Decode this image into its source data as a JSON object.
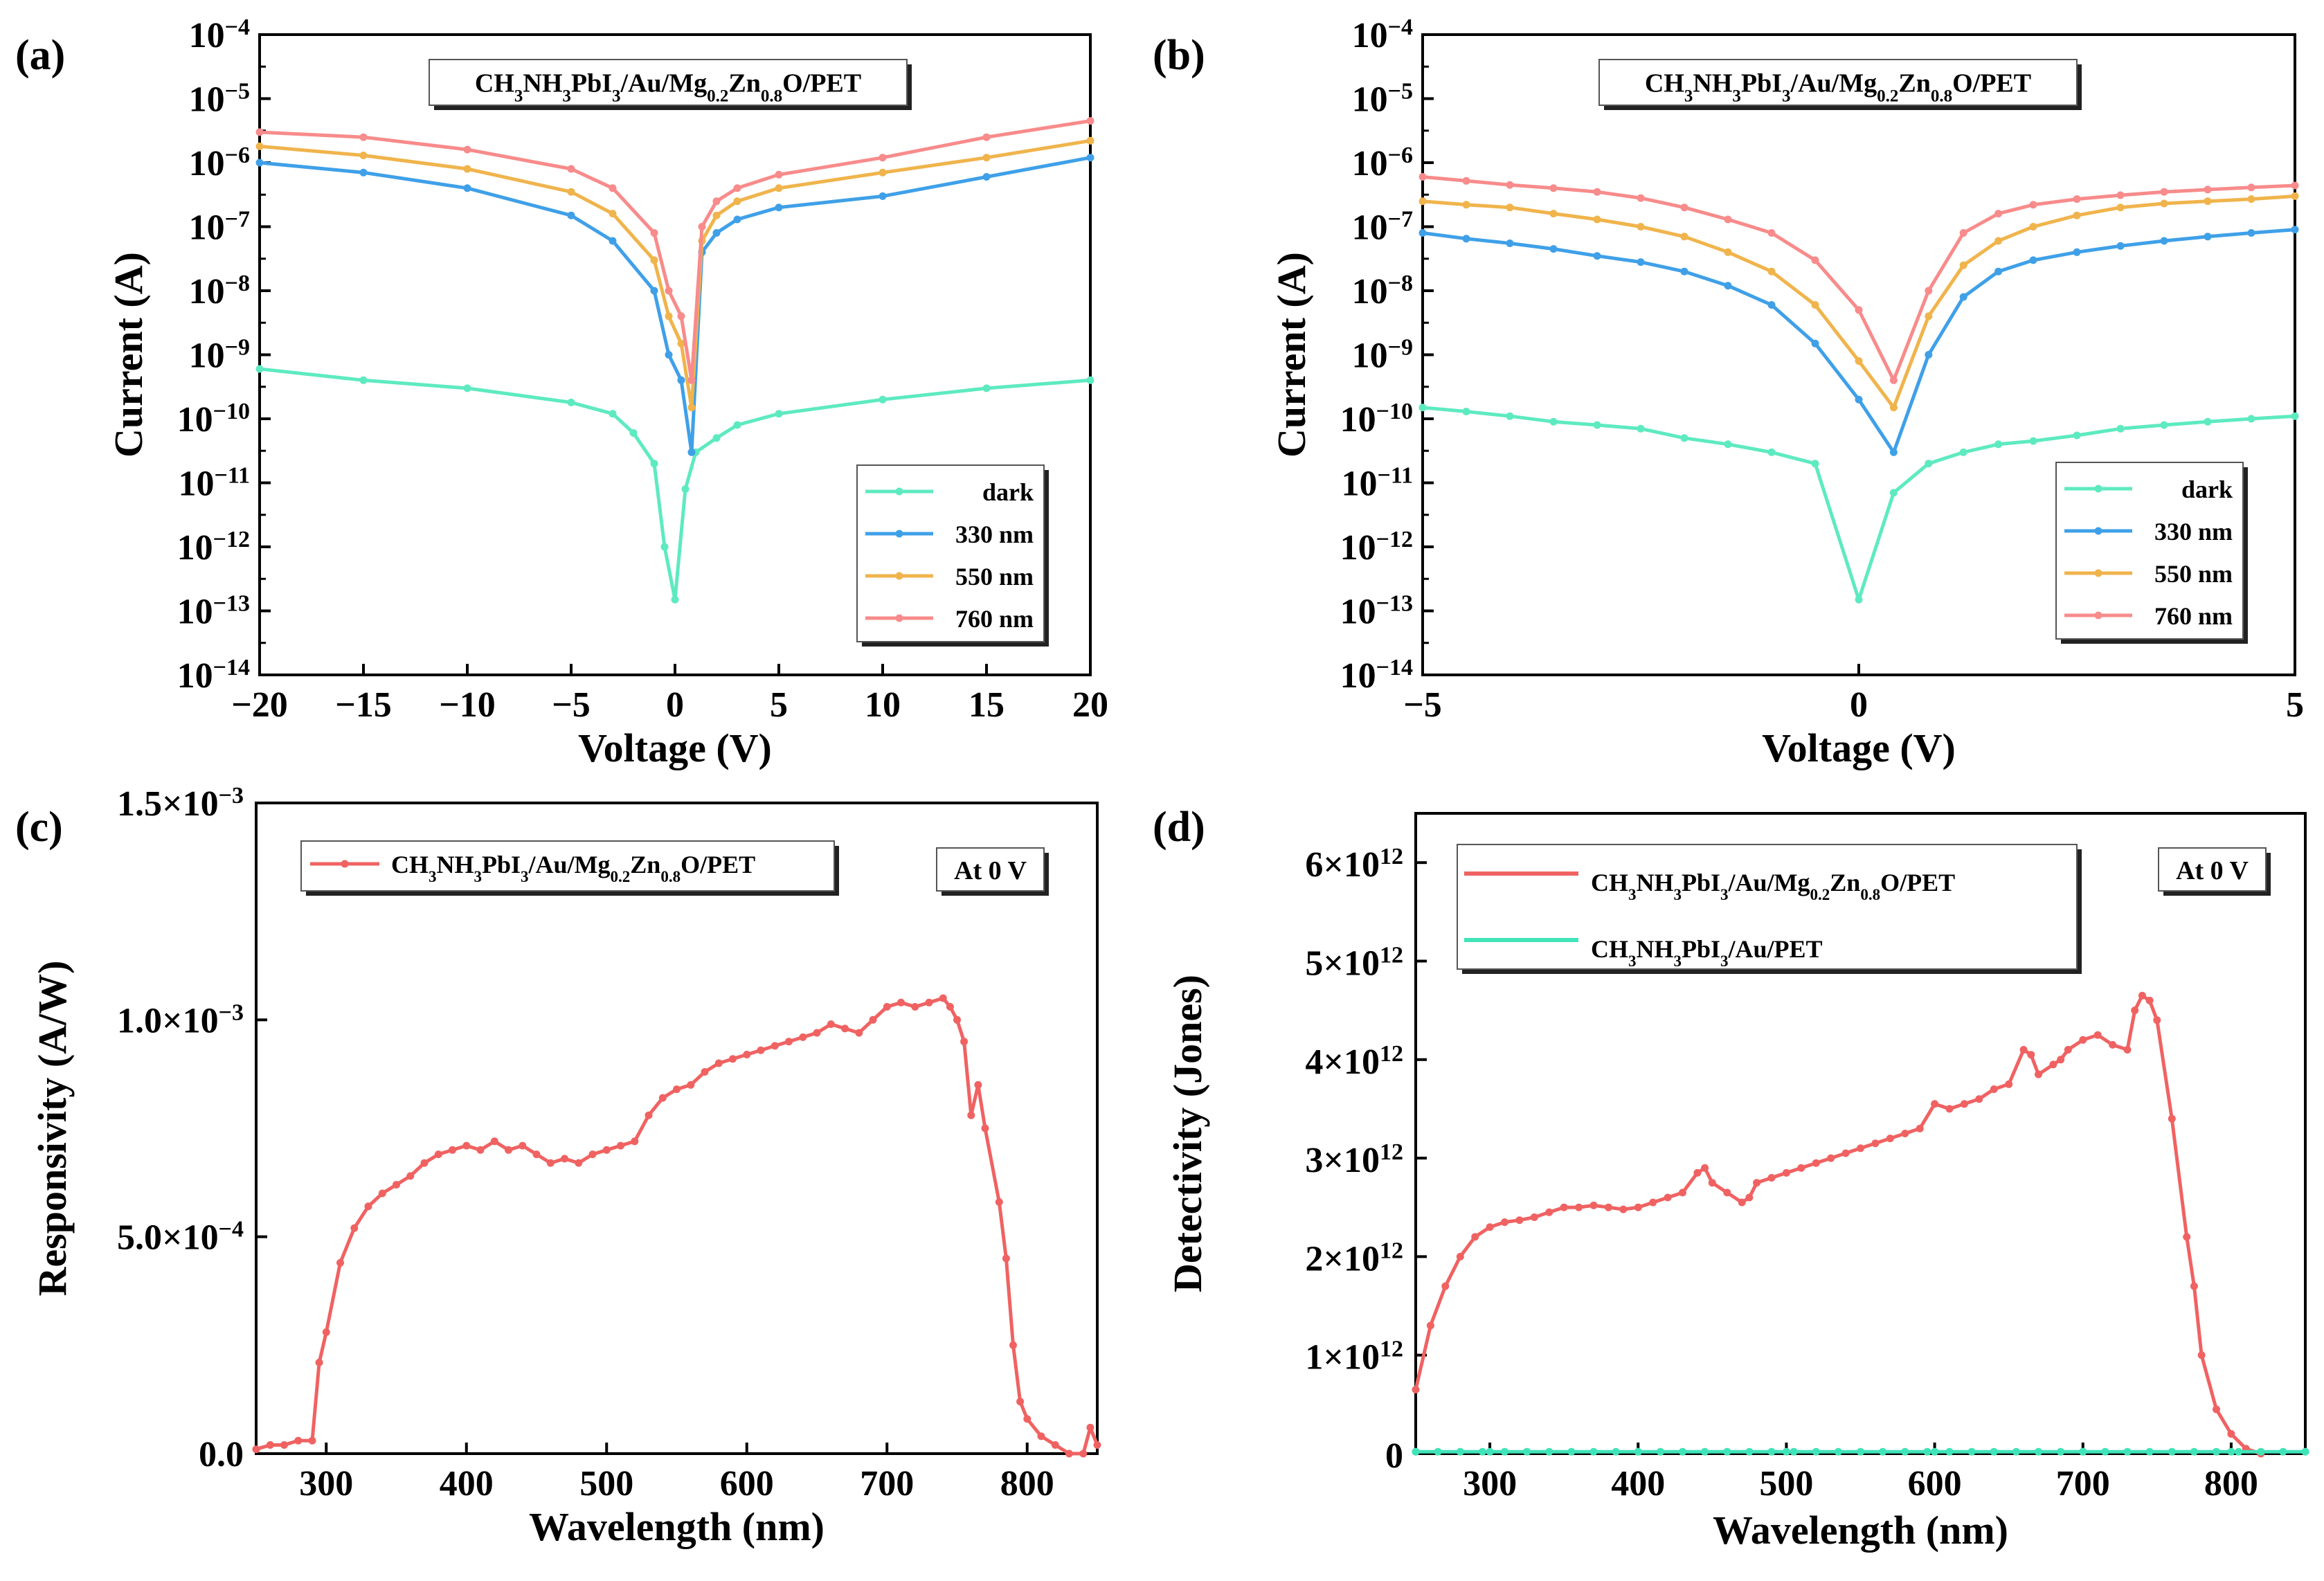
{
  "figure": {
    "panels": [
      "(a)",
      "(b)",
      "(c)",
      "(d)"
    ],
    "device_label": "CH3NH3PbI3/Au/Mg0.2Zn0.8O/PET",
    "bias_note": "At 0 V"
  },
  "chart_data": [
    {
      "panel": "(a)",
      "type": "line",
      "yscale": "log",
      "title": "CH3NH3PbI3/Au/Mg0.2Zn0.8O/PET",
      "xlabel": "Voltage (V)",
      "ylabel": "Current (A)",
      "xlim": [
        -20,
        20
      ],
      "ylim_exp": [
        -14,
        -4
      ],
      "x_ticks": [
        -20,
        -15,
        -10,
        -5,
        0,
        5,
        10,
        15,
        20
      ],
      "y_tick_exponents": [
        -14,
        -13,
        -12,
        -11,
        -10,
        -9,
        -8,
        -7,
        -6,
        -5,
        -4
      ],
      "legend_position": "bottom-right",
      "series": [
        {
          "name": "dark",
          "color": "#5eeac0",
          "x": [
            -20,
            -15,
            -10,
            -5,
            -3,
            -2,
            -1,
            -0.5,
            0,
            0.5,
            1,
            2,
            3,
            5,
            10,
            15,
            20
          ],
          "y": [
            6e-10,
            4e-10,
            3e-10,
            1.8e-10,
            1.2e-10,
            6e-11,
            2e-11,
            1e-12,
            1.5e-13,
            8e-12,
            3e-11,
            5e-11,
            8e-11,
            1.2e-10,
            2e-10,
            3e-10,
            4e-10
          ]
        },
        {
          "name": "330 nm",
          "color": "#3fa0e8",
          "x": [
            -20,
            -15,
            -10,
            -5,
            -3,
            -1,
            -0.3,
            0.3,
            0.8,
            1.3,
            2,
            3,
            5,
            10,
            15,
            20
          ],
          "y": [
            1e-06,
            7e-07,
            4e-07,
            1.5e-07,
            6e-08,
            1e-08,
            1e-09,
            4e-10,
            3e-11,
            4e-08,
            8e-08,
            1.3e-07,
            2e-07,
            3e-07,
            6e-07,
            1.2e-06
          ]
        },
        {
          "name": "550 nm",
          "color": "#f0b44c",
          "x": [
            -20,
            -15,
            -10,
            -5,
            -3,
            -1,
            -0.3,
            0.3,
            0.8,
            1.3,
            2,
            3,
            5,
            10,
            15,
            20
          ],
          "y": [
            1.8e-06,
            1.3e-06,
            8e-07,
            3.5e-07,
            1.6e-07,
            3e-08,
            4e-09,
            1.5e-09,
            1.5e-10,
            6e-08,
            1.5e-07,
            2.5e-07,
            4e-07,
            7e-07,
            1.2e-06,
            2.2e-06
          ]
        },
        {
          "name": "760 nm",
          "color": "#f88b8b",
          "x": [
            -20,
            -15,
            -10,
            -5,
            -3,
            -1,
            -0.3,
            0.3,
            0.8,
            1.3,
            2,
            3,
            5,
            10,
            15,
            20
          ],
          "y": [
            3e-06,
            2.5e-06,
            1.6e-06,
            8e-07,
            4e-07,
            8e-08,
            1e-08,
            4e-09,
            4e-10,
            1e-07,
            2.5e-07,
            4e-07,
            6.5e-07,
            1.2e-06,
            2.5e-06,
            4.5e-06
          ]
        }
      ]
    },
    {
      "panel": "(b)",
      "type": "line",
      "yscale": "log",
      "title": "CH3NH3PbI3/Au/Mg0.2Zn0.8O/PET",
      "xlabel": "Voltage (V)",
      "ylabel": "Current (A)",
      "xlim": [
        -5,
        5
      ],
      "ylim_exp": [
        -14,
        -4
      ],
      "x_ticks": [
        -5,
        0,
        5
      ],
      "y_tick_exponents": [
        -14,
        -13,
        -12,
        -11,
        -10,
        -9,
        -8,
        -7,
        -6,
        -5,
        -4
      ],
      "legend_position": "bottom-right",
      "series": [
        {
          "name": "dark",
          "color": "#5eeac0",
          "x": [
            -5,
            -4.5,
            -4,
            -3.5,
            -3,
            -2.5,
            -2,
            -1.5,
            -1,
            -0.5,
            0,
            0.4,
            0.8,
            1.2,
            1.6,
            2,
            2.5,
            3,
            3.5,
            4,
            4.5,
            5
          ],
          "y": [
            1.5e-10,
            1.3e-10,
            1.1e-10,
            9e-11,
            8e-11,
            7e-11,
            5e-11,
            4e-11,
            3e-11,
            2e-11,
            1.5e-13,
            7e-12,
            2e-11,
            3e-11,
            4e-11,
            4.5e-11,
            5.5e-11,
            7e-11,
            8e-11,
            9e-11,
            1e-10,
            1.1e-10
          ]
        },
        {
          "name": "330 nm",
          "color": "#3fa0e8",
          "x": [
            -5,
            -4.5,
            -4,
            -3.5,
            -3,
            -2.5,
            -2,
            -1.5,
            -1,
            -0.5,
            0,
            0.4,
            0.8,
            1.2,
            1.6,
            2,
            2.5,
            3,
            3.5,
            4,
            4.5,
            5
          ],
          "y": [
            8e-08,
            6.5e-08,
            5.5e-08,
            4.5e-08,
            3.5e-08,
            2.8e-08,
            2e-08,
            1.2e-08,
            6e-09,
            1.5e-09,
            2e-10,
            3e-11,
            1e-09,
            8e-09,
            2e-08,
            3e-08,
            4e-08,
            5e-08,
            6e-08,
            7e-08,
            8e-08,
            9e-08
          ]
        },
        {
          "name": "550 nm",
          "color": "#f0b44c",
          "x": [
            -5,
            -4.5,
            -4,
            -3.5,
            -3,
            -2.5,
            -2,
            -1.5,
            -1,
            -0.5,
            0,
            0.4,
            0.8,
            1.2,
            1.6,
            2,
            2.5,
            3,
            3.5,
            4,
            4.5,
            5
          ],
          "y": [
            2.5e-07,
            2.2e-07,
            2e-07,
            1.6e-07,
            1.3e-07,
            1e-07,
            7e-08,
            4e-08,
            2e-08,
            6e-09,
            8e-10,
            1.5e-10,
            4e-09,
            2.5e-08,
            6e-08,
            1e-07,
            1.5e-07,
            2e-07,
            2.3e-07,
            2.5e-07,
            2.7e-07,
            3e-07
          ]
        },
        {
          "name": "760 nm",
          "color": "#f88b8b",
          "x": [
            -5,
            -4.5,
            -4,
            -3.5,
            -3,
            -2.5,
            -2,
            -1.5,
            -1,
            -0.5,
            0,
            0.4,
            0.8,
            1.2,
            1.6,
            2,
            2.5,
            3,
            3.5,
            4,
            4.5,
            5
          ],
          "y": [
            6e-07,
            5.2e-07,
            4.5e-07,
            4e-07,
            3.5e-07,
            2.8e-07,
            2e-07,
            1.3e-07,
            8e-08,
            3e-08,
            5e-09,
            4e-10,
            1e-08,
            8e-08,
            1.6e-07,
            2.2e-07,
            2.7e-07,
            3.1e-07,
            3.5e-07,
            3.8e-07,
            4.1e-07,
            4.4e-07
          ]
        }
      ]
    },
    {
      "panel": "(c)",
      "type": "line",
      "title": "",
      "xlabel": "Wavelength (nm)",
      "ylabel": "Responsivity (A/W)",
      "xlim": [
        250,
        850
      ],
      "ylim": [
        0,
        0.0015
      ],
      "x_ticks": [
        300,
        400,
        500,
        600,
        700,
        800
      ],
      "y_tick_labels": [
        "0.0",
        "5.0×10",
        "1.0×10",
        "1.5×10"
      ],
      "y_tick_exps": [
        "",
        "-4",
        "-3",
        "-3"
      ],
      "legend_position": "top-left",
      "series": [
        {
          "name": "CH3NH3PbI3/Au/Mg0.2Zn0.8O/PET",
          "color": "#f06262",
          "x": [
            250,
            260,
            270,
            280,
            290,
            295,
            300,
            310,
            320,
            330,
            340,
            350,
            360,
            370,
            380,
            390,
            400,
            410,
            420,
            430,
            440,
            450,
            460,
            470,
            480,
            490,
            500,
            510,
            520,
            530,
            540,
            550,
            560,
            570,
            580,
            590,
            600,
            610,
            620,
            630,
            640,
            650,
            660,
            670,
            680,
            690,
            700,
            710,
            720,
            730,
            740,
            745,
            750,
            755,
            760,
            765,
            770,
            780,
            785,
            790,
            795,
            800,
            810,
            820,
            830,
            840,
            845,
            850
          ],
          "y": [
            1e-05,
            2e-05,
            2e-05,
            3e-05,
            3e-05,
            0.00021,
            0.00028,
            0.00044,
            0.00052,
            0.00057,
            0.0006,
            0.00062,
            0.00064,
            0.00067,
            0.00069,
            0.0007,
            0.00071,
            0.0007,
            0.00072,
            0.0007,
            0.00071,
            0.00069,
            0.00067,
            0.00068,
            0.00067,
            0.00069,
            0.0007,
            0.00071,
            0.00072,
            0.00078,
            0.00082,
            0.00084,
            0.00085,
            0.00088,
            0.0009,
            0.00091,
            0.00092,
            0.00093,
            0.00094,
            0.00095,
            0.00096,
            0.00097,
            0.00099,
            0.00098,
            0.00097,
            0.001,
            0.00103,
            0.00104,
            0.00103,
            0.00104,
            0.00105,
            0.00103,
            0.001,
            0.00095,
            0.00078,
            0.00085,
            0.00075,
            0.00058,
            0.00045,
            0.00025,
            0.00012,
            8e-05,
            4e-05,
            2e-05,
            0.0,
            0.0,
            6e-05,
            2e-05
          ]
        }
      ]
    },
    {
      "panel": "(d)",
      "type": "line",
      "title": "",
      "xlabel": "Wavelength (nm)",
      "ylabel": "Detectivity (Jones)",
      "xlim": [
        250,
        850
      ],
      "ylim": [
        0,
        6500000000000.0
      ],
      "x_ticks": [
        300,
        400,
        500,
        600,
        700,
        800
      ],
      "y_tick_values": [
        0,
        1000000000000.0,
        2000000000000.0,
        3000000000000.0,
        4000000000000.0,
        5000000000000.0,
        6000000000000.0
      ],
      "y_tick_mantissas": [
        "0",
        "1",
        "2",
        "3",
        "4",
        "5",
        "6"
      ],
      "y_tick_suffix": "×10",
      "y_tick_exp": "12",
      "legend_position": "top-left",
      "series": [
        {
          "name": "CH3NH3PbI3/Au/Mg0.2Zn0.8O/PET",
          "color": "#f06262",
          "x": [
            250,
            260,
            270,
            280,
            290,
            300,
            310,
            320,
            330,
            340,
            350,
            360,
            370,
            380,
            390,
            400,
            410,
            420,
            430,
            440,
            445,
            450,
            460,
            470,
            475,
            480,
            490,
            500,
            510,
            520,
            530,
            540,
            550,
            560,
            570,
            580,
            590,
            600,
            610,
            620,
            630,
            640,
            650,
            660,
            665,
            670,
            680,
            685,
            690,
            700,
            710,
            720,
            730,
            735,
            740,
            745,
            750,
            760,
            770,
            775,
            780,
            790,
            800,
            810,
            820
          ],
          "y": [
            650000000000.0,
            1300000000000.0,
            1700000000000.0,
            2000000000000.0,
            2200000000000.0,
            2300000000000.0,
            2350000000000.0,
            2370000000000.0,
            2400000000000.0,
            2450000000000.0,
            2500000000000.0,
            2500000000000.0,
            2520000000000.0,
            2500000000000.0,
            2480000000000.0,
            2500000000000.0,
            2550000000000.0,
            2600000000000.0,
            2650000000000.0,
            2850000000000.0,
            2900000000000.0,
            2750000000000.0,
            2650000000000.0,
            2550000000000.0,
            2600000000000.0,
            2750000000000.0,
            2800000000000.0,
            2850000000000.0,
            2900000000000.0,
            2950000000000.0,
            3000000000000.0,
            3050000000000.0,
            3100000000000.0,
            3150000000000.0,
            3200000000000.0,
            3250000000000.0,
            3300000000000.0,
            3550000000000.0,
            3500000000000.0,
            3550000000000.0,
            3600000000000.0,
            3700000000000.0,
            3750000000000.0,
            4100000000000.0,
            4050000000000.0,
            3850000000000.0,
            3950000000000.0,
            4000000000000.0,
            4100000000000.0,
            4200000000000.0,
            4250000000000.0,
            4150000000000.0,
            4100000000000.0,
            4500000000000.0,
            4650000000000.0,
            4600000000000.0,
            4400000000000.0,
            3400000000000.0,
            2200000000000.0,
            1700000000000.0,
            1000000000000.0,
            450000000000.0,
            200000000000.0,
            50000000000.0,
            0.0
          ]
        },
        {
          "name": "CH3NH3PbI3/Au/PET",
          "color": "#40e4b8",
          "x": [
            250,
            300,
            400,
            500,
            600,
            700,
            800,
            850
          ],
          "y": [
            20000000000.0,
            20000000000.0,
            20000000000.0,
            20000000000.0,
            20000000000.0,
            20000000000.0,
            20000000000.0,
            20000000000.0
          ]
        }
      ]
    }
  ]
}
